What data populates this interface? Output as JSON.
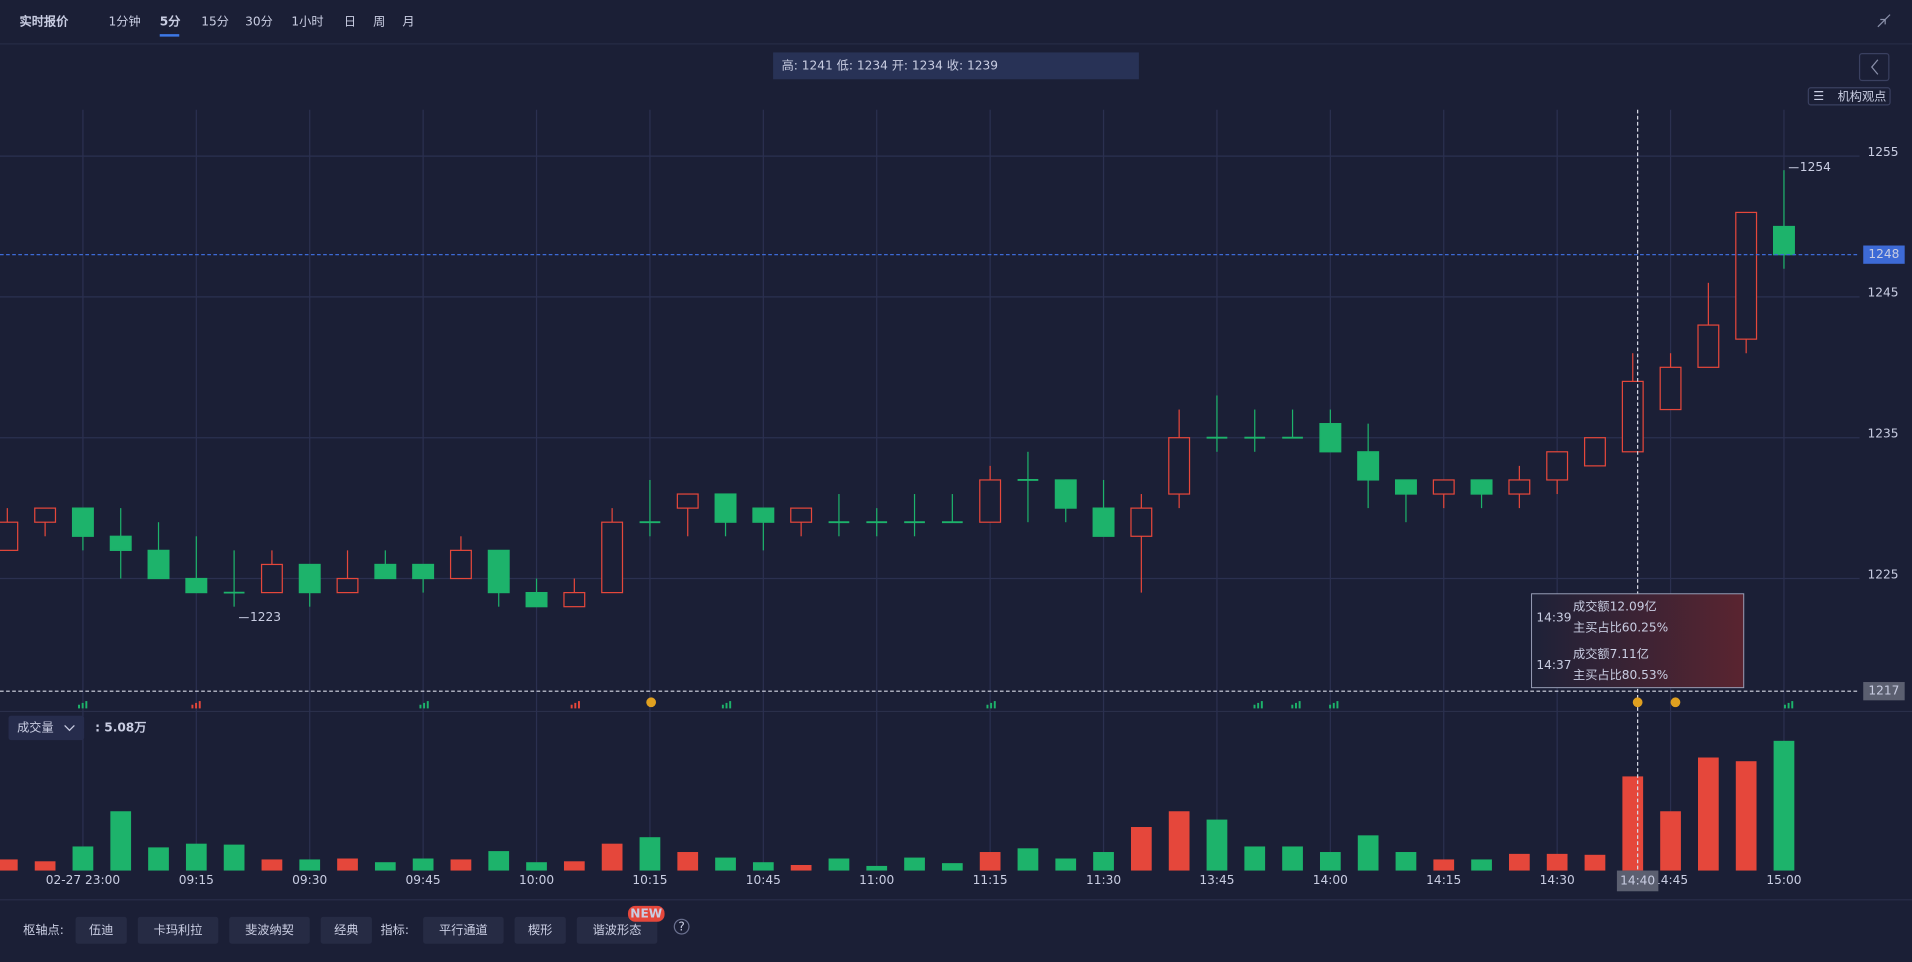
{
  "header": {
    "title": "实时报价",
    "tabs": [
      "1分钟",
      "5分",
      "15分",
      "30分",
      "1小时",
      "日",
      "周",
      "月"
    ],
    "active_tab": "5分",
    "ohlc_info": "高: 1241 低: 1234 开: 1234 收: 1239",
    "opinion_button": "机构观点"
  },
  "chart_data": {
    "type": "candlestick",
    "x": [
      null,
      null,
      "02-27 23:00",
      null,
      null,
      "09:15",
      null,
      null,
      "09:30",
      null,
      null,
      "09:45",
      null,
      null,
      "10:00",
      null,
      null,
      "10:15",
      null,
      null,
      "10:45",
      null,
      null,
      "11:00",
      null,
      null,
      "11:15",
      null,
      null,
      "11:30",
      null,
      null,
      "13:45",
      null,
      null,
      "14:00",
      null,
      null,
      "14:15",
      null,
      null,
      "14:30",
      null,
      null,
      "14:45",
      null,
      null,
      "15:00"
    ],
    "open": [
      1227,
      1229,
      1230,
      1228,
      1227,
      1225,
      1224,
      1224,
      1226,
      1224,
      1226,
      1226,
      1225,
      1227,
      1224,
      1223,
      1224,
      1229,
      1230,
      1231,
      1230,
      1229,
      1229,
      1229,
      1229,
      1229,
      1229,
      1232,
      1232,
      1230,
      1228,
      1231,
      1235,
      1235,
      1235,
      1236,
      1234,
      1232,
      1231,
      1232,
      1231,
      1232,
      1233,
      1234,
      1237,
      1240,
      1242,
      1250
    ],
    "high": [
      1230,
      1230,
      1230,
      1230,
      1229,
      1228,
      1227,
      1227,
      1226,
      1227,
      1227,
      1226,
      1228,
      1227,
      1225,
      1225,
      1230,
      1232,
      1231,
      1231,
      1230,
      1230,
      1231,
      1230,
      1231,
      1231,
      1233,
      1234,
      1232,
      1232,
      1231,
      1237,
      1238,
      1237,
      1237,
      1237,
      1236,
      1232,
      1232,
      1232,
      1233,
      1234,
      1235,
      1241,
      1241,
      1246,
      1251,
      1254
    ],
    "low": [
      1227,
      1228,
      1227,
      1225,
      1225,
      1224,
      1223,
      1224,
      1223,
      1224,
      1225,
      1224,
      1225,
      1223,
      1223,
      1223,
      1224,
      1228,
      1228,
      1228,
      1227,
      1228,
      1228,
      1228,
      1228,
      1229,
      1229,
      1229,
      1229,
      1228,
      1224,
      1230,
      1234,
      1234,
      1235,
      1234,
      1230,
      1229,
      1230,
      1230,
      1230,
      1231,
      1233,
      1234,
      1237,
      1240,
      1241,
      1247
    ],
    "close": [
      1229,
      1230,
      1228,
      1227,
      1225,
      1224,
      1224,
      1226,
      1224,
      1225,
      1225,
      1225,
      1227,
      1224,
      1223,
      1224,
      1229,
      1229,
      1231,
      1229,
      1229,
      1230,
      1229,
      1229,
      1229,
      1229,
      1232,
      1232,
      1230,
      1228,
      1230,
      1235,
      1235,
      1235,
      1235,
      1234,
      1232,
      1231,
      1232,
      1231,
      1232,
      1234,
      1235,
      1239,
      1240,
      1243,
      1251,
      1248
    ],
    "volume": [
      0.6,
      0.5,
      1.3,
      3.2,
      1.25,
      1.45,
      1.4,
      0.6,
      0.6,
      0.65,
      0.45,
      0.65,
      0.6,
      1.05,
      0.45,
      0.5,
      1.45,
      1.8,
      1.0,
      0.7,
      0.45,
      0.3,
      0.65,
      0.25,
      0.7,
      0.4,
      1.0,
      1.2,
      0.65,
      1.0,
      2.35,
      3.2,
      2.75,
      1.3,
      1.3,
      1.0,
      1.9,
      1.0,
      0.6,
      0.6,
      0.9,
      0.9,
      0.85,
      5.08,
      3.2,
      6.1,
      5.9,
      7.0
    ],
    "up_color": "#e5473b",
    "down_color": "#1db36b",
    "ylim": [
      1215.5,
      1258.5
    ],
    "yticks": [
      1225,
      1235,
      1245,
      1255
    ],
    "grid": true,
    "last_price": 1248,
    "crosshair": {
      "price": 1217,
      "time": "14:40"
    },
    "volume_title": "成交量",
    "volume_value": ": 5.08万",
    "tooltip": [
      {
        "time": "14:39",
        "amount": "成交额12.09亿",
        "ratio": "主买占比60.25%"
      },
      {
        "time": "14:37",
        "amount": "成交额7.11亿",
        "ratio": "主买占比80.53%"
      }
    ]
  },
  "footer": {
    "pivot_label": "枢轴点:",
    "pivots": [
      "伍迪",
      "卡玛利拉",
      "斐波纳契",
      "经典"
    ],
    "indicator_label": "指标:",
    "indicators": [
      "平行通道",
      "楔形",
      "谐波形态"
    ],
    "new_badge": "NEW"
  }
}
